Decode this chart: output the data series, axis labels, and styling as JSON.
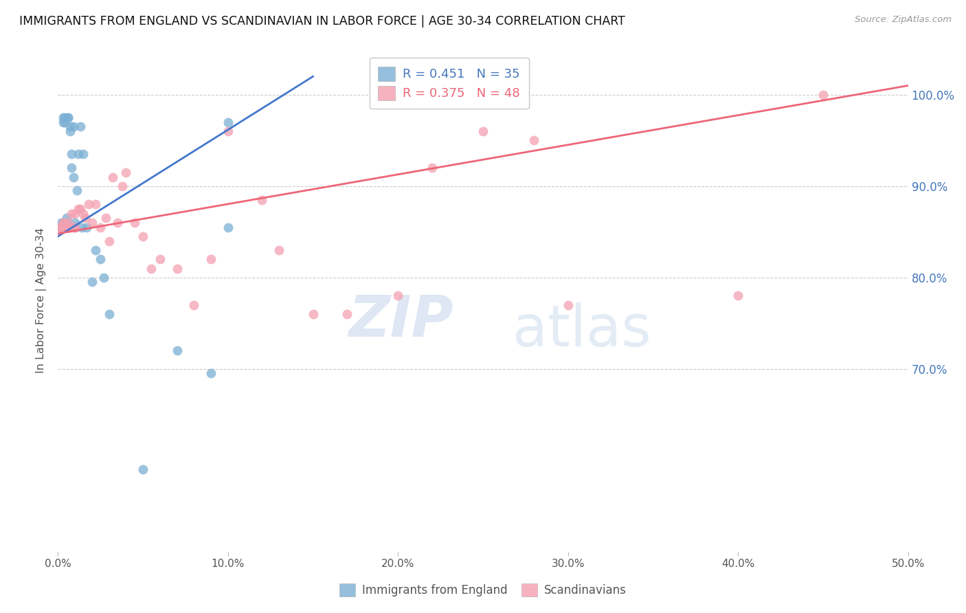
{
  "title": "IMMIGRANTS FROM ENGLAND VS SCANDINAVIAN IN LABOR FORCE | AGE 30-34 CORRELATION CHART",
  "source": "Source: ZipAtlas.com",
  "ylabel": "In Labor Force | Age 30-34",
  "xlabel_ticks": [
    0.0,
    0.1,
    0.2,
    0.3,
    0.4,
    0.5
  ],
  "xlabel_labels": [
    "0.0%",
    "10.0%",
    "20.0%",
    "30.0%",
    "40.0%",
    "50.0%"
  ],
  "ylabel_right_ticks": [
    0.7,
    0.8,
    0.9,
    1.0
  ],
  "ylabel_right_labels": [
    "70.0%",
    "80.0%",
    "90.0%",
    "100.0%"
  ],
  "xlim": [
    0.0,
    0.5
  ],
  "ylim": [
    0.5,
    1.05
  ],
  "england_R": 0.451,
  "england_N": 35,
  "scandi_R": 0.375,
  "scandi_N": 48,
  "england_color": "#7BAFD4",
  "scandi_color": "#F4A0B0",
  "england_line_color": "#4477CC",
  "scandi_line_color": "#EE6677",
  "england_x": [
    0.001,
    0.002,
    0.003,
    0.003,
    0.004,
    0.004,
    0.005,
    0.005,
    0.005,
    0.006,
    0.006,
    0.007,
    0.007,
    0.008,
    0.008,
    0.009,
    0.009,
    0.01,
    0.01,
    0.011,
    0.012,
    0.013,
    0.014,
    0.015,
    0.017,
    0.02,
    0.022,
    0.025,
    0.027,
    0.03,
    0.05,
    0.07,
    0.09,
    0.1,
    0.1
  ],
  "england_y": [
    0.855,
    0.86,
    0.97,
    0.975,
    0.97,
    0.975,
    0.855,
    0.86,
    0.865,
    0.975,
    0.975,
    0.965,
    0.96,
    0.92,
    0.935,
    0.91,
    0.965,
    0.855,
    0.86,
    0.895,
    0.935,
    0.965,
    0.855,
    0.935,
    0.855,
    0.795,
    0.83,
    0.82,
    0.8,
    0.76,
    0.59,
    0.72,
    0.695,
    0.855,
    0.97
  ],
  "scandi_x": [
    0.001,
    0.002,
    0.003,
    0.003,
    0.004,
    0.004,
    0.005,
    0.005,
    0.006,
    0.006,
    0.007,
    0.008,
    0.009,
    0.01,
    0.01,
    0.012,
    0.013,
    0.015,
    0.016,
    0.018,
    0.02,
    0.022,
    0.025,
    0.028,
    0.03,
    0.032,
    0.035,
    0.038,
    0.04,
    0.045,
    0.05,
    0.055,
    0.06,
    0.07,
    0.08,
    0.09,
    0.1,
    0.12,
    0.13,
    0.15,
    0.17,
    0.2,
    0.22,
    0.25,
    0.28,
    0.3,
    0.4,
    0.45
  ],
  "scandi_y": [
    0.855,
    0.855,
    0.855,
    0.86,
    0.855,
    0.86,
    0.855,
    0.855,
    0.855,
    0.86,
    0.855,
    0.87,
    0.855,
    0.87,
    0.855,
    0.875,
    0.875,
    0.87,
    0.865,
    0.88,
    0.86,
    0.88,
    0.855,
    0.865,
    0.84,
    0.91,
    0.86,
    0.9,
    0.915,
    0.86,
    0.845,
    0.81,
    0.82,
    0.81,
    0.77,
    0.82,
    0.96,
    0.885,
    0.83,
    0.76,
    0.76,
    0.78,
    0.92,
    0.96,
    0.95,
    0.77,
    0.78,
    1.0
  ],
  "england_trend_x": [
    0.0,
    0.15
  ],
  "england_trend_y": [
    0.845,
    1.02
  ],
  "scandi_trend_x": [
    0.0,
    0.5
  ],
  "scandi_trend_y": [
    0.848,
    1.01
  ],
  "legend_england": "Immigrants from England",
  "legend_scandi": "Scandinavians",
  "watermark_zip": "ZIP",
  "watermark_atlas": "atlas",
  "background_color": "#FFFFFF",
  "grid_color": "#CCCCCC",
  "title_color": "#111111",
  "right_label_color": "#4477BB"
}
